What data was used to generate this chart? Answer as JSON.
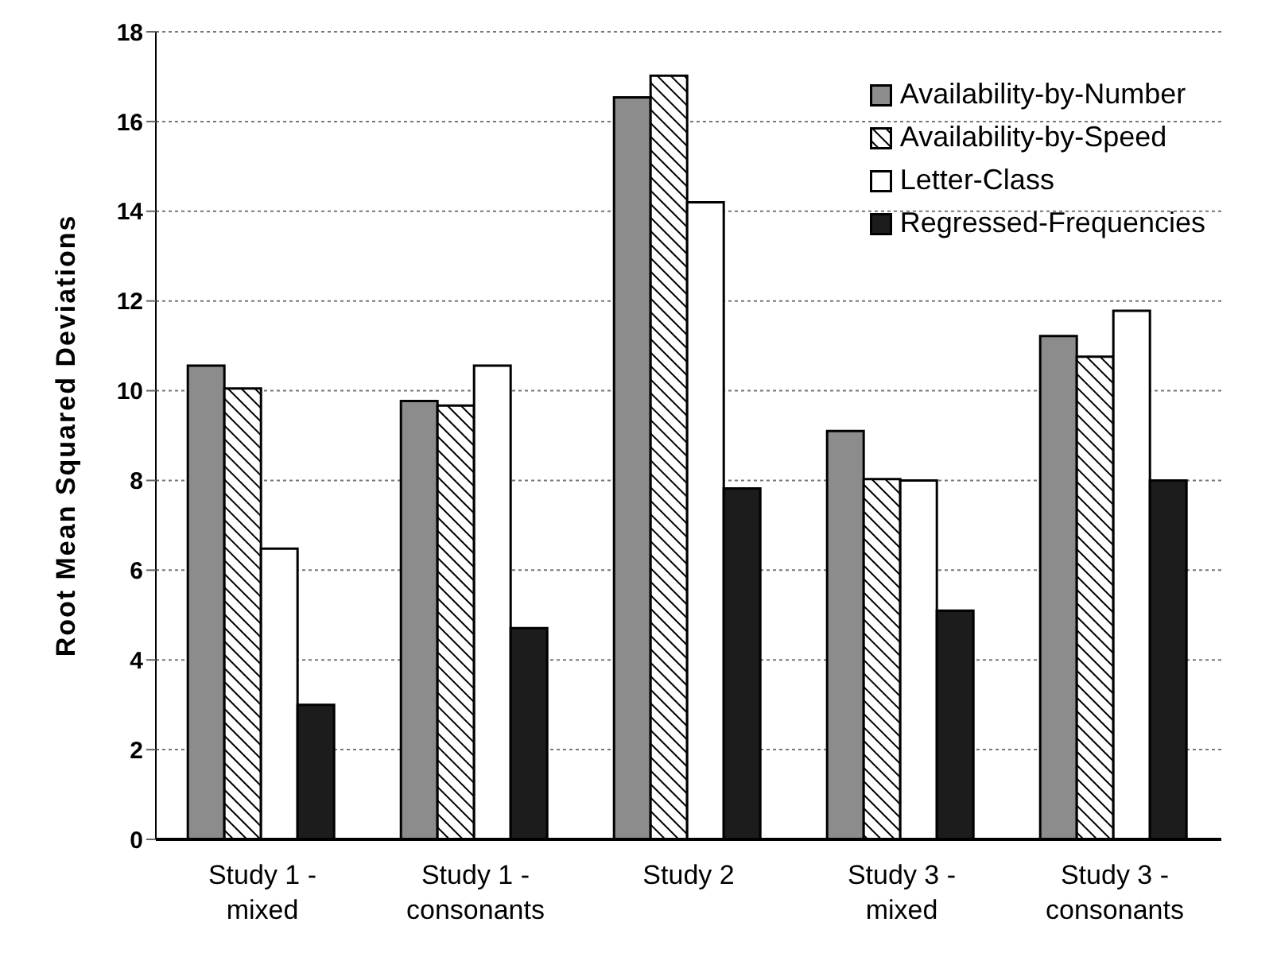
{
  "chart_data": {
    "type": "bar",
    "ylabel": "Root Mean Squared Deviations",
    "categories": [
      "Study 1 -\nmixed",
      "Study 1 -\nconsonants",
      "Study 2",
      "Study 3 -\nmixed",
      "Study 3 -\nconsonants"
    ],
    "series": [
      {
        "name": "Availability-by-Number",
        "color": "#8c8c8c",
        "values": [
          10.56,
          9.77,
          16.54,
          9.1,
          11.22
        ]
      },
      {
        "name": "Availability-by-Speed",
        "color": "#000000",
        "values": [
          10.05,
          9.67,
          17.02,
          8.03,
          10.76
        ]
      },
      {
        "name": "Letter-Class",
        "color": "#ffffff",
        "values": [
          6.48,
          10.56,
          14.2,
          8.0,
          11.78
        ]
      },
      {
        "name": "Regressed-Frequencies",
        "color": "#1c1c1c",
        "values": [
          3.0,
          4.71,
          7.82,
          5.1,
          8.0
        ]
      }
    ],
    "ylim": [
      0,
      18
    ],
    "yticks": [
      0,
      2,
      4,
      6,
      8,
      10,
      12,
      14,
      16,
      18
    ],
    "grid": "y",
    "legend": "top right"
  }
}
